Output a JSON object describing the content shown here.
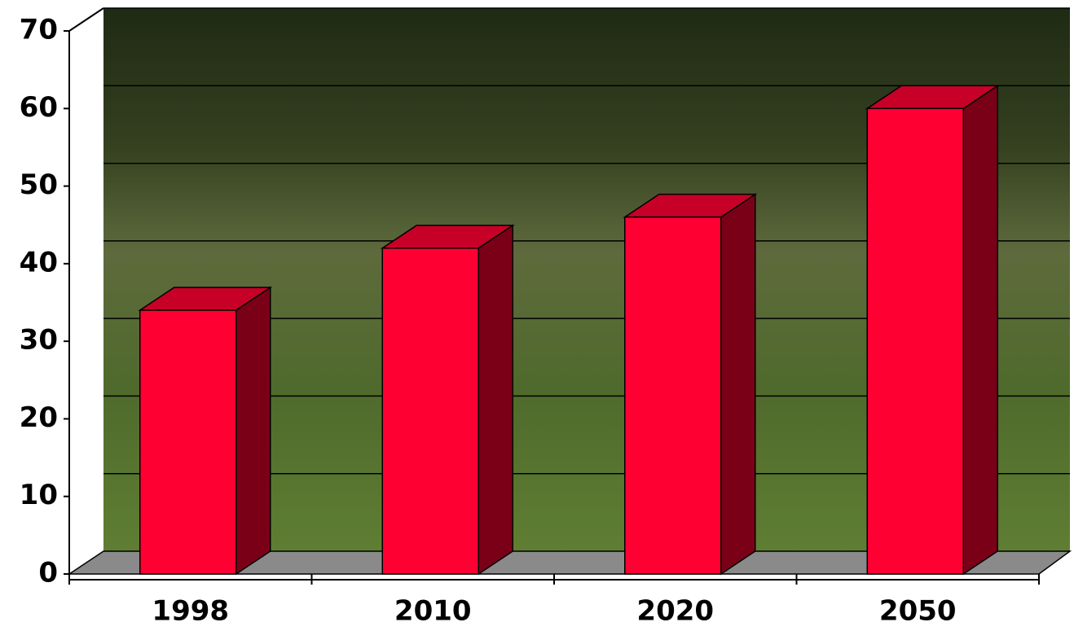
{
  "chart_data": {
    "type": "bar3d",
    "categories": [
      "1998",
      "2010",
      "2020",
      "2050"
    ],
    "values": [
      34,
      42,
      46,
      60
    ],
    "color": "#ff0033",
    "ylim": [
      0,
      70
    ],
    "yticks": [
      0,
      10,
      20,
      30,
      40,
      50,
      60,
      70
    ],
    "grid": true
  }
}
